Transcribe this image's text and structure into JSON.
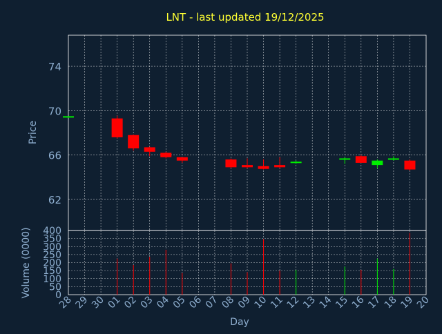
{
  "colors": {
    "background": "#0f1f30",
    "title": "#ffff33",
    "axis_text": "#8fafd0",
    "frame": "#ffffff",
    "grid": "#ffffff",
    "up": "#00ee00",
    "down": "#ff0000"
  },
  "chart_data": [
    {
      "type": "candlestick",
      "title": "LNT - last updated 19/12/2025",
      "ylabel": "Price",
      "xlabel": "",
      "ylim": [
        59.2,
        76.8
      ],
      "yticks": [
        62,
        66,
        70,
        74
      ],
      "grid": true,
      "categories": [
        "28",
        "29",
        "30",
        "01",
        "02",
        "03",
        "04",
        "05",
        "06",
        "07",
        "08",
        "09",
        "10",
        "11",
        "12",
        "13",
        "14",
        "15",
        "16",
        "17",
        "18",
        "19",
        "20"
      ],
      "candles": [
        {
          "day": "28",
          "open": 69.4,
          "high": 69.5,
          "low": 69.35,
          "close": 69.5
        },
        {
          "day": "01",
          "open": 69.3,
          "high": 69.55,
          "low": 67.5,
          "close": 67.6
        },
        {
          "day": "02",
          "open": 67.8,
          "high": 67.85,
          "low": 66.4,
          "close": 66.6
        },
        {
          "day": "03",
          "open": 66.7,
          "high": 66.75,
          "low": 65.9,
          "close": 66.3
        },
        {
          "day": "04",
          "open": 66.2,
          "high": 66.3,
          "low": 65.7,
          "close": 65.8
        },
        {
          "day": "05",
          "open": 65.8,
          "high": 65.8,
          "low": 65.3,
          "close": 65.5
        },
        {
          "day": "08",
          "open": 65.6,
          "high": 65.7,
          "low": 64.8,
          "close": 64.9
        },
        {
          "day": "09",
          "open": 65.1,
          "high": 65.7,
          "low": 64.8,
          "close": 64.9
        },
        {
          "day": "10",
          "open": 65.0,
          "high": 65.6,
          "low": 64.7,
          "close": 64.75
        },
        {
          "day": "11",
          "open": 65.1,
          "high": 65.8,
          "low": 64.8,
          "close": 64.9
        },
        {
          "day": "12",
          "open": 65.3,
          "high": 65.5,
          "low": 65.2,
          "close": 65.4
        },
        {
          "day": "15",
          "open": 65.6,
          "high": 65.8,
          "low": 65.2,
          "close": 65.7
        },
        {
          "day": "16",
          "open": 65.9,
          "high": 66.0,
          "low": 65.3,
          "close": 65.3
        },
        {
          "day": "17",
          "open": 65.1,
          "high": 65.6,
          "low": 64.8,
          "close": 65.5
        },
        {
          "day": "18",
          "open": 65.6,
          "high": 65.9,
          "low": 65.5,
          "close": 65.7
        },
        {
          "day": "19",
          "open": 65.5,
          "high": 65.6,
          "low": 64.6,
          "close": 64.7
        }
      ]
    },
    {
      "type": "bar",
      "ylabel": "Volume (0000)",
      "xlabel": "Day",
      "ylim": [
        0,
        400
      ],
      "yticks": [
        0,
        50,
        100,
        150,
        200,
        250,
        300,
        350,
        400
      ],
      "grid": true,
      "categories": [
        "28",
        "29",
        "30",
        "01",
        "02",
        "03",
        "04",
        "05",
        "06",
        "07",
        "08",
        "09",
        "10",
        "11",
        "12",
        "13",
        "14",
        "15",
        "16",
        "17",
        "18",
        "19",
        "20"
      ],
      "bars": [
        {
          "day": "01",
          "value": 225,
          "direction": "down"
        },
        {
          "day": "02",
          "value": 185,
          "direction": "down"
        },
        {
          "day": "03",
          "value": 235,
          "direction": "down"
        },
        {
          "day": "04",
          "value": 280,
          "direction": "down"
        },
        {
          "day": "05",
          "value": 135,
          "direction": "down"
        },
        {
          "day": "08",
          "value": 195,
          "direction": "down"
        },
        {
          "day": "09",
          "value": 140,
          "direction": "down"
        },
        {
          "day": "10",
          "value": 345,
          "direction": "down"
        },
        {
          "day": "11",
          "value": 150,
          "direction": "down"
        },
        {
          "day": "12",
          "value": 155,
          "direction": "up"
        },
        {
          "day": "15",
          "value": 175,
          "direction": "up"
        },
        {
          "day": "16",
          "value": 155,
          "direction": "down"
        },
        {
          "day": "17",
          "value": 225,
          "direction": "up"
        },
        {
          "day": "18",
          "value": 160,
          "direction": "up"
        },
        {
          "day": "19",
          "value": 385,
          "direction": "down"
        }
      ]
    }
  ]
}
